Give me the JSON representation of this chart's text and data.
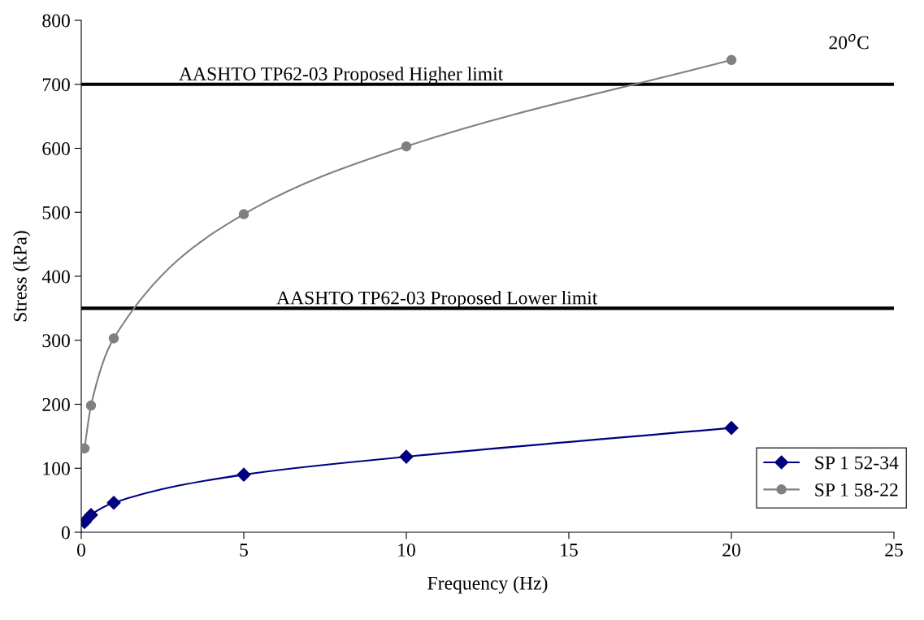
{
  "chart_data": {
    "type": "line",
    "xlabel": "Frequency (Hz)",
    "ylabel": "Stress (kPa)",
    "xlim": [
      0,
      25
    ],
    "xticks": [
      0,
      5,
      10,
      15,
      20,
      25
    ],
    "ylim": [
      0,
      800
    ],
    "yticks": [
      0,
      100,
      200,
      300,
      400,
      500,
      600,
      700,
      800
    ],
    "series": [
      {
        "name": "SP 1 52-34",
        "color": "#000080",
        "marker": "diamond",
        "x": [
          0.1,
          0.3,
          1,
          5,
          10,
          20
        ],
        "values": [
          16,
          27,
          46,
          90,
          118,
          163
        ]
      },
      {
        "name": "SP 1 58-22",
        "color": "#808080",
        "marker": "circle",
        "x": [
          0.1,
          0.3,
          1,
          5,
          10,
          20
        ],
        "values": [
          131,
          198,
          303,
          497,
          603,
          738
        ]
      }
    ],
    "ref_lines": [
      {
        "axis": "y",
        "value": 700,
        "label": "AASHTO TP62-03 Proposed Higher limit",
        "color": "#000000"
      },
      {
        "axis": "y",
        "value": 350,
        "label": "AASHTO TP62-03 Proposed Lower limit",
        "color": "#000000"
      }
    ],
    "annotations": [
      "20$^{o}$C"
    ],
    "legend": "bottom right",
    "grid": false
  }
}
